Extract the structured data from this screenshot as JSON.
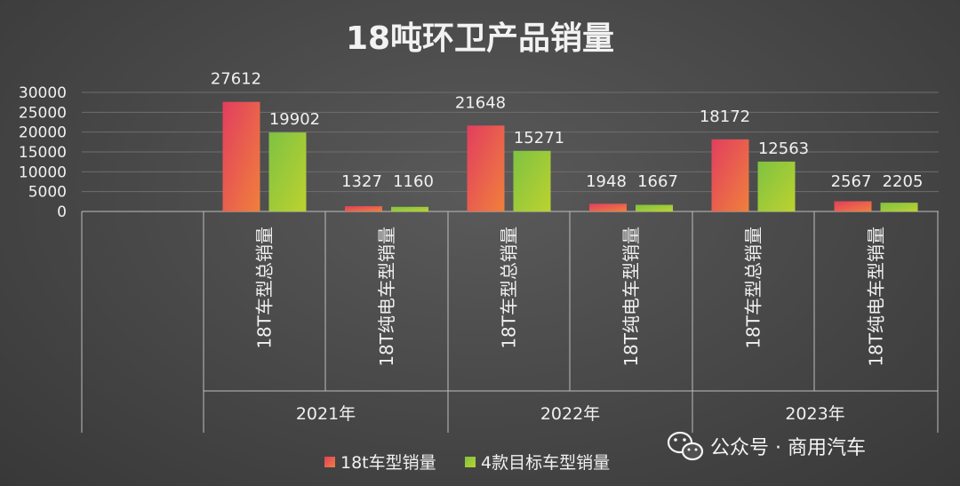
{
  "chart_data": {
    "type": "bar",
    "title": "18吨环卫产品销量",
    "groups": [
      {
        "year": "2021年",
        "categories": [
          "18T车型总销量",
          "18T纯电车型销量"
        ]
      },
      {
        "year": "2022年",
        "categories": [
          "18T车型总销量",
          "18T纯电车型销量"
        ]
      },
      {
        "year": "2023年",
        "categories": [
          "18T车型总销量",
          "18T纯电车型销量"
        ]
      }
    ],
    "series": [
      {
        "name": "18t车型销量",
        "values": [
          27612,
          1327,
          21648,
          1948,
          18172,
          2567
        ],
        "color": "#e8505a"
      },
      {
        "name": "4款目标车型销量",
        "values": [
          19902,
          1160,
          15271,
          1667,
          12563,
          2205
        ],
        "color": "#9cc83a"
      }
    ],
    "yticks": [
      "30000",
      "25000",
      "20000",
      "15000",
      "10000",
      "5000",
      "0"
    ],
    "ylim": [
      0,
      30000
    ],
    "grid": true,
    "legend_position": "bottom"
  },
  "watermark": {
    "text": "公众号 · 商用汽车",
    "icon": "wechat-icon"
  }
}
